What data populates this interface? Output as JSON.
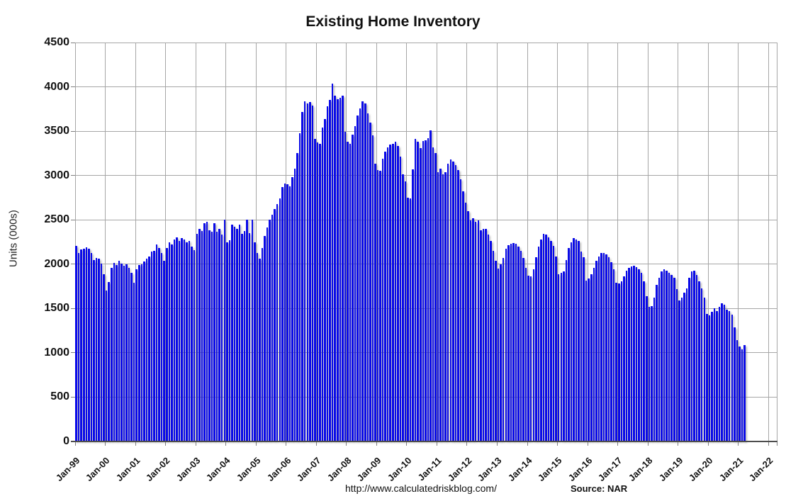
{
  "title": "Existing Home Inventory",
  "footer": {
    "url": "http://www.calculatedriskblog.com/",
    "source": "Source: NAR"
  },
  "colors": {
    "bar": "#0a0ae8",
    "grid": "#a6a6a6",
    "axis": "#4d4d4d",
    "text": "#111111"
  },
  "chart_data": {
    "type": "bar",
    "title": "Existing Home Inventory",
    "xlabel": "",
    "ylabel": "Units (000s)",
    "ylim": [
      0,
      4500
    ],
    "y_tick_interval": 500,
    "y_tick_labels": [
      "0",
      "500",
      "1000",
      "1500",
      "2000",
      "2500",
      "3000",
      "3500",
      "4000",
      "4500"
    ],
    "x_tick_labels": [
      "Jan-99",
      "Jan-00",
      "Jan-01",
      "Jan-02",
      "Jan-03",
      "Jan-04",
      "Jan-05",
      "Jan-06",
      "Jan-07",
      "Jan-08",
      "Jan-09",
      "Jan-10",
      "Jan-11",
      "Jan-12",
      "Jan-13",
      "Jan-14",
      "Jan-15",
      "Jan-16",
      "Jan-17",
      "Jan-18",
      "Jan-19",
      "Jan-20",
      "Jan-21",
      "Jan-22"
    ],
    "frequency": "monthly",
    "x_start": "Jan-1999",
    "x_end": "Mar-2021",
    "grid": true,
    "series": [
      {
        "name": "Existing Home Inventory (000s)",
        "values": [
          2205,
          2125,
          2165,
          2175,
          2190,
          2175,
          2130,
          2050,
          2070,
          2060,
          2010,
          1890,
          1700,
          1800,
          1960,
          2015,
          1990,
          2035,
          2010,
          1980,
          2000,
          1960,
          1900,
          1790,
          1945,
          1990,
          2000,
          2030,
          2060,
          2085,
          2140,
          2150,
          2220,
          2180,
          2130,
          2040,
          2180,
          2250,
          2220,
          2275,
          2300,
          2260,
          2290,
          2275,
          2250,
          2260,
          2195,
          2155,
          2345,
          2400,
          2375,
          2460,
          2475,
          2380,
          2365,
          2460,
          2365,
          2395,
          2330,
          2500,
          2250,
          2270,
          2445,
          2420,
          2395,
          2445,
          2340,
          2375,
          2505,
          2350,
          2505,
          2250,
          2125,
          2060,
          2180,
          2320,
          2410,
          2500,
          2560,
          2620,
          2680,
          2745,
          2870,
          2910,
          2905,
          2875,
          2980,
          3075,
          3250,
          3475,
          3715,
          3835,
          3815,
          3830,
          3790,
          3410,
          3370,
          3355,
          3540,
          3635,
          3780,
          3850,
          4040,
          3900,
          3860,
          3880,
          3900,
          3490,
          3380,
          3360,
          3460,
          3560,
          3680,
          3760,
          3840,
          3810,
          3700,
          3595,
          3455,
          3130,
          3060,
          3050,
          3190,
          3270,
          3320,
          3350,
          3360,
          3380,
          3330,
          3210,
          3010,
          2930,
          2750,
          2740,
          3070,
          3410,
          3380,
          3310,
          3390,
          3400,
          3420,
          3510,
          3320,
          3250,
          3035,
          3075,
          3015,
          3035,
          3130,
          3180,
          3160,
          3120,
          3060,
          2955,
          2820,
          2690,
          2595,
          2495,
          2515,
          2480,
          2495,
          2385,
          2395,
          2400,
          2335,
          2260,
          2150,
          2040,
          1950,
          2000,
          2070,
          2175,
          2215,
          2230,
          2240,
          2230,
          2200,
          2150,
          2070,
          1960,
          1870,
          1860,
          1940,
          2080,
          2200,
          2280,
          2340,
          2330,
          2300,
          2260,
          2210,
          2090,
          1885,
          1905,
          1915,
          2050,
          2180,
          2250,
          2290,
          2275,
          2260,
          2140,
          2075,
          1815,
          1835,
          1885,
          1955,
          2035,
          2090,
          2125,
          2130,
          2110,
          2075,
          2020,
          1940,
          1790,
          1780,
          1810,
          1860,
          1930,
          1955,
          1975,
          1980,
          1970,
          1940,
          1900,
          1810,
          1635,
          1520,
          1525,
          1620,
          1770,
          1850,
          1915,
          1940,
          1925,
          1905,
          1880,
          1850,
          1715,
          1590,
          1625,
          1680,
          1730,
          1850,
          1920,
          1930,
          1875,
          1810,
          1730,
          1620,
          1440,
          1420,
          1460,
          1500,
          1470,
          1520,
          1555,
          1540,
          1490,
          1470,
          1430,
          1285,
          1140,
          1070,
          1040,
          1085
        ]
      }
    ],
    "legend": null
  }
}
